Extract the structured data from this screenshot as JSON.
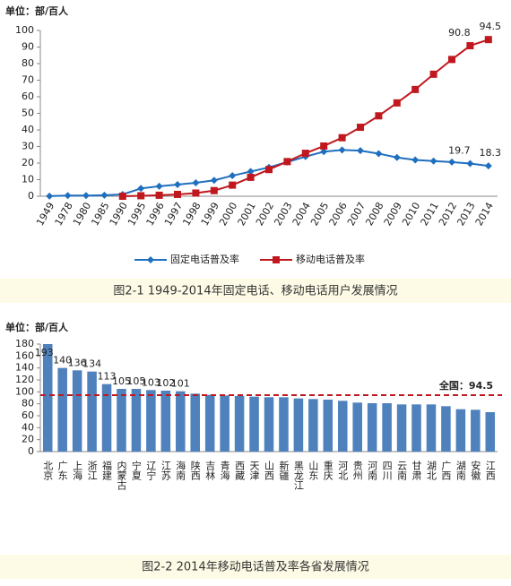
{
  "chart_data": [
    {
      "type": "line",
      "unit": "单位：部/百人",
      "caption": "图2-1 1949-2014年固定电话、移动电话用户发展情况",
      "categories": [
        "1949",
        "1978",
        "1980",
        "1985",
        "1990",
        "1995",
        "1996",
        "1997",
        "1998",
        "1999",
        "2000",
        "2001",
        "2002",
        "2003",
        "2004",
        "2005",
        "2006",
        "2007",
        "2008",
        "2009",
        "2010",
        "2011",
        "2012",
        "2013",
        "2014"
      ],
      "series": [
        {
          "name": "固定电话普及率",
          "color": "#1f6fbf",
          "marker": "diamond",
          "values": [
            0.05,
            0.4,
            0.4,
            0.6,
            1.1,
            4.7,
            6.0,
            7.0,
            8.1,
            9.6,
            12.4,
            14.9,
            17.4,
            20.6,
            23.9,
            26.9,
            27.9,
            27.5,
            25.7,
            23.4,
            21.9,
            21.2,
            20.6,
            19.7,
            18.3
          ],
          "value_labels": [
            null,
            null,
            null,
            null,
            null,
            null,
            null,
            null,
            null,
            null,
            null,
            null,
            null,
            null,
            null,
            null,
            null,
            null,
            null,
            null,
            null,
            null,
            null,
            "19.7",
            "18.3"
          ]
        },
        {
          "name": "移动电话普及率",
          "color": "#c0181e",
          "marker": "square",
          "values": [
            null,
            null,
            null,
            null,
            0.0,
            0.3,
            0.6,
            1.1,
            1.9,
            3.4,
            6.7,
            11.4,
            16.1,
            20.9,
            25.9,
            30.3,
            35.3,
            41.6,
            48.5,
            56.3,
            64.4,
            73.6,
            82.5,
            90.8,
            94.5
          ],
          "value_labels": [
            null,
            null,
            null,
            null,
            null,
            null,
            null,
            null,
            null,
            null,
            null,
            null,
            null,
            null,
            null,
            null,
            null,
            null,
            null,
            null,
            null,
            null,
            null,
            "90.8",
            "94.5"
          ]
        }
      ],
      "ylim": [
        0,
        100
      ],
      "yticks": [
        0,
        10,
        20,
        30,
        40,
        50,
        60,
        70,
        80,
        90,
        100
      ],
      "grid": false,
      "legend": "bottom"
    },
    {
      "type": "bar",
      "unit": "单位：部/百人",
      "caption": "图2-2 2014年移动电话普及率各省发展情况",
      "categories": [
        "北京",
        "广东",
        "上海",
        "浙江",
        "福建",
        "内蒙古",
        "宁夏",
        "辽宁",
        "江苏",
        "海南",
        "陕西",
        "吉林",
        "青海",
        "西藏",
        "天津",
        "山西",
        "新疆",
        "黑龙江",
        "山东",
        "重庆",
        "河北",
        "贵州",
        "河南",
        "四川",
        "云南",
        "甘肃",
        "湖北",
        "广西",
        "湖南",
        "安徽",
        "江西"
      ],
      "values": [
        193,
        140,
        136,
        134,
        113,
        105,
        105,
        103,
        102,
        101,
        97,
        95,
        94,
        93,
        92,
        91,
        91,
        89,
        88,
        87,
        85,
        82,
        81,
        81,
        79,
        79,
        79,
        76,
        71,
        70,
        66
      ],
      "value_labels": [
        "193",
        "140",
        "136",
        "134",
        "113",
        "105",
        "105",
        "103",
        "102",
        "101",
        null,
        null,
        null,
        null,
        null,
        null,
        null,
        null,
        null,
        null,
        null,
        null,
        null,
        null,
        null,
        null,
        null,
        null,
        null,
        null,
        null
      ],
      "color": "#4f81bd",
      "reference_line": {
        "value": 94.5,
        "label": "全国：94.5",
        "color": "#c0181e"
      },
      "ylim": [
        0,
        180
      ],
      "yticks": [
        0,
        20,
        40,
        60,
        80,
        100,
        120,
        140,
        160,
        180
      ],
      "grid": false
    }
  ]
}
